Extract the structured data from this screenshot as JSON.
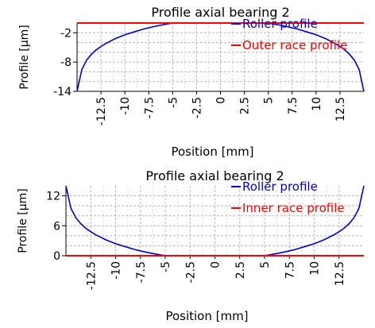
{
  "chart_data": [
    {
      "type": "line",
      "title": "Profile axial bearing 2",
      "xlabel": "Position [mm]",
      "ylabel": "Profile [µm]",
      "xlim": [
        -15,
        15
      ],
      "ylim": [
        -14,
        0
      ],
      "grid": true,
      "legend_position": "top-right",
      "xticks": [
        -12.5,
        -10,
        -7.5,
        -5,
        -2.5,
        0,
        2.5,
        5,
        7.5,
        10,
        12.5
      ],
      "xtick_labels": [
        "-12.5",
        "-10",
        "-7.5",
        "-5",
        "-2.5",
        "0",
        "2.5",
        "5",
        "7.5",
        "10",
        "12.5"
      ],
      "yticks": [
        -2,
        -8,
        -14
      ],
      "ytick_labels": [
        "-2",
        "-8",
        "-14"
      ],
      "series": [
        {
          "name": "Roller profile",
          "color": "#0000cc",
          "x": [
            -15,
            -14.5,
            -14,
            -13.5,
            -13,
            -12.5,
            -12,
            -11,
            -10,
            -9,
            -8,
            -7,
            -6,
            -5,
            5,
            6,
            7,
            8,
            9,
            10,
            11,
            12,
            12.5,
            13,
            13.5,
            14,
            14.5,
            15
          ],
          "y": [
            -14,
            -9.5,
            -7.6,
            -6.4,
            -5.5,
            -4.8,
            -4.2,
            -3.2,
            -2.4,
            -1.8,
            -1.2,
            -0.75,
            -0.35,
            0,
            0,
            -0.35,
            -0.75,
            -1.2,
            -1.8,
            -2.4,
            -3.2,
            -4.2,
            -4.8,
            -5.5,
            -6.4,
            -7.6,
            -9.5,
            -14
          ]
        },
        {
          "name": "Outer race profile",
          "color": "#ff0000",
          "x": [
            -15,
            15
          ],
          "y": [
            0,
            0
          ]
        }
      ]
    },
    {
      "type": "line",
      "title": "Profile axial bearing 2",
      "xlabel": "Position [mm]",
      "ylabel": "Profile [µm]",
      "xlim": [
        -15,
        15
      ],
      "ylim": [
        0,
        14
      ],
      "grid": true,
      "legend_position": "top-right",
      "xticks": [
        -12.5,
        -10,
        -7.5,
        -5,
        -2.5,
        0,
        2.5,
        5,
        7.5,
        10,
        12.5
      ],
      "xtick_labels": [
        "-12.5",
        "-10",
        "-7.5",
        "-5",
        "-2.5",
        "0",
        "2.5",
        "5",
        "7.5",
        "10",
        "12.5"
      ],
      "yticks": [
        0,
        6,
        12
      ],
      "ytick_labels": [
        "0",
        "6",
        "12"
      ],
      "series": [
        {
          "name": "Roller profile",
          "color": "#0000cc",
          "x": [
            -15,
            -14.5,
            -14,
            -13.5,
            -13,
            -12.5,
            -12,
            -11,
            -10,
            -9,
            -8,
            -7,
            -6,
            -5,
            5,
            6,
            7,
            8,
            9,
            10,
            11,
            12,
            12.5,
            13,
            13.5,
            14,
            14.5,
            15
          ],
          "y": [
            14,
            9.5,
            7.6,
            6.4,
            5.5,
            4.8,
            4.2,
            3.2,
            2.4,
            1.8,
            1.2,
            0.75,
            0.35,
            0,
            0,
            0.35,
            0.75,
            1.2,
            1.8,
            2.4,
            3.2,
            4.2,
            4.8,
            5.5,
            6.4,
            7.6,
            9.5,
            14
          ]
        },
        {
          "name": "Inner race profile",
          "color": "#ff0000",
          "x": [
            -15,
            15
          ],
          "y": [
            0,
            0
          ]
        }
      ]
    }
  ]
}
